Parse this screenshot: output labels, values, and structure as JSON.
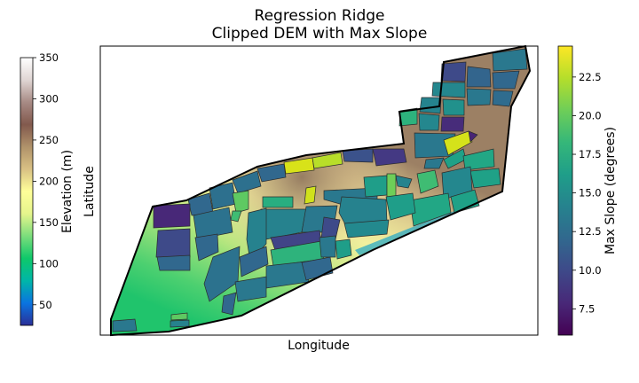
{
  "chart_data": {
    "type": "heatmap",
    "title_line1": "Regression Ridge",
    "title_line2": "Clipped DEM with Max Slope",
    "xlabel": "Longitude",
    "ylabel": "Latitude",
    "grid": false,
    "colorbars": [
      {
        "side": "left",
        "label": "Elevation (m)",
        "range": [
          25,
          350
        ],
        "ticks": [
          50,
          100,
          150,
          200,
          250,
          300,
          350
        ],
        "colormap": "terrain",
        "stops": [
          "#2b2f98",
          "#0a74e0",
          "#00b6a8",
          "#0ec86a",
          "#7bdd7c",
          "#e5f58c",
          "#ffff99",
          "#d9c184",
          "#b0926a",
          "#82594d",
          "#a78a84",
          "#e0d6d4",
          "#ffffff"
        ]
      },
      {
        "side": "right",
        "label": "Max Slope (degrees)",
        "range": [
          5.8,
          24.5
        ],
        "ticks": [
          7.5,
          10.0,
          12.5,
          15.0,
          17.5,
          20.0,
          22.5
        ],
        "colormap": "viridis",
        "stops": [
          "#440154",
          "#482878",
          "#3e4989",
          "#31688e",
          "#26828e",
          "#1f9e89",
          "#35b779",
          "#6ece58",
          "#b5de2b",
          "#fde725"
        ]
      }
    ],
    "map_colors": {
      "boundary": "#000000",
      "lowland": "#9ee26a",
      "ridge": "#a08a6c"
    }
  }
}
